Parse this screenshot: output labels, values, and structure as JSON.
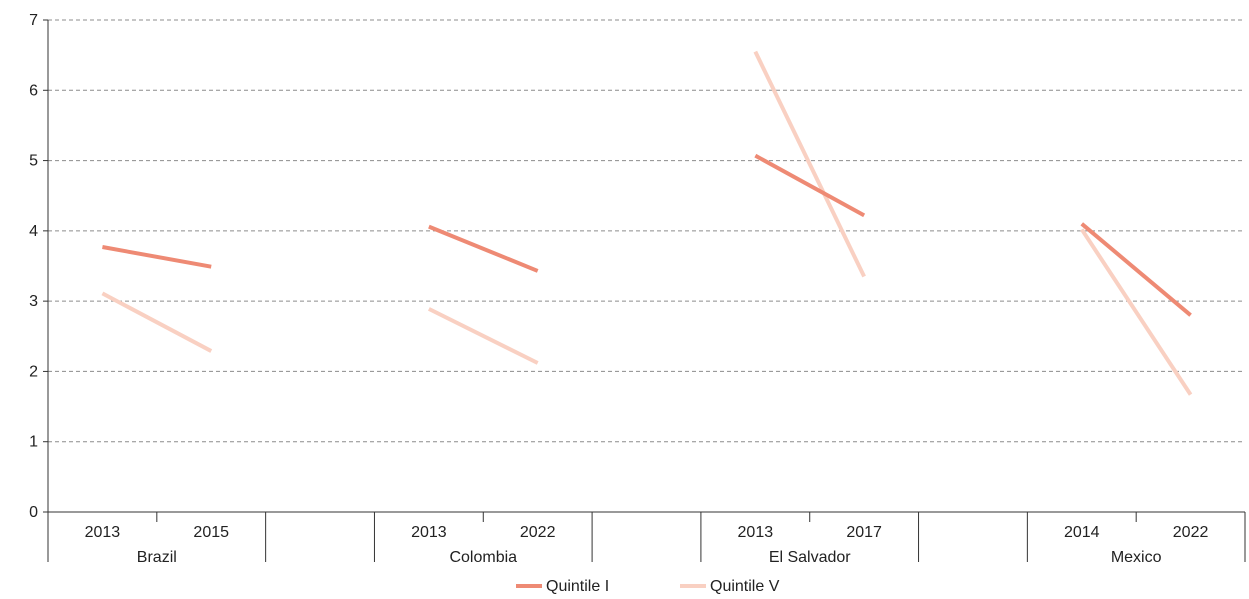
{
  "chart_data": {
    "type": "line",
    "title": "",
    "xlabel": "",
    "ylabel": "",
    "ylim": [
      0,
      7
    ],
    "y_ticks": [
      "0",
      "1",
      "2",
      "3",
      "4",
      "5",
      "6",
      "7"
    ],
    "grid": true,
    "legend_placement": "bottom-center",
    "groups": [
      {
        "country": "Brazil",
        "years": [
          "2013",
          "2015"
        ],
        "series_values": {
          "quintile_1": [
            3.77,
            3.49
          ],
          "quintile_5": [
            3.11,
            2.29
          ]
        }
      },
      {
        "country": "Colombia",
        "years": [
          "2013",
          "2022"
        ],
        "series_values": {
          "quintile_1": [
            4.06,
            3.43
          ],
          "quintile_5": [
            2.89,
            2.12
          ]
        }
      },
      {
        "country": "El Salvador",
        "years": [
          "2013",
          "2017"
        ],
        "series_values": {
          "quintile_1": [
            5.07,
            4.22
          ],
          "quintile_5": [
            6.55,
            3.35
          ]
        }
      },
      {
        "country": "Mexico",
        "years": [
          "2014",
          "2022"
        ],
        "series_values": {
          "quintile_1": [
            4.1,
            2.8
          ],
          "quintile_5": [
            4.02,
            1.67
          ]
        }
      }
    ],
    "series": [
      {
        "key": "quintile_1",
        "name": "Quintile I",
        "color": "#ee8a74"
      },
      {
        "key": "quintile_5",
        "name": "Quintile V",
        "color": "#f9d0c2"
      }
    ]
  }
}
